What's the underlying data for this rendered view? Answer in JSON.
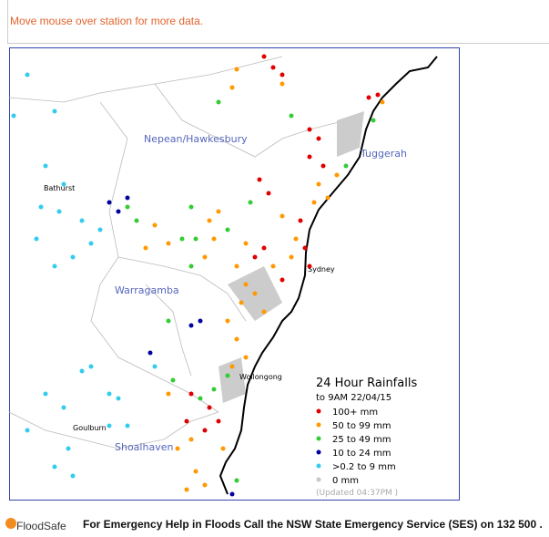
{
  "header": {
    "hint": "Move mouse over station for more data."
  },
  "map": {
    "places": {
      "nepean": "Nepean/Hawkesbury",
      "tuggerah": "Tuggerah",
      "bathurst": "Bathurst",
      "sydney": "Sydney",
      "warragamba": "Warragamba",
      "wollongong": "Wollongong",
      "goulburn": "Goulburn",
      "shoalhaven": "Shoalhaven"
    },
    "legend": {
      "title": "24 Hour Rainfalls",
      "subtitle": "to 9AM 22/04/15",
      "items": [
        {
          "label": "100+ mm",
          "color": "#e00000"
        },
        {
          "label": "50  to 99 mm",
          "color": "#ff9900"
        },
        {
          "label": "25  to 49 mm",
          "color": "#33cc33"
        },
        {
          "label": "10  to 24 mm",
          "color": "#0000a0"
        },
        {
          "label": ">0.2 to 9 mm",
          "color": "#33ccee"
        },
        {
          "label": "0 mm",
          "color": "#c8c8c8"
        }
      ],
      "updated": "(Updated 04:37PM  )"
    }
  },
  "footer": {
    "logo": "FloodSafe",
    "help": "For Emergency Help in Floods Call the NSW State Emergency Service (SES) on 132 500 ."
  }
}
